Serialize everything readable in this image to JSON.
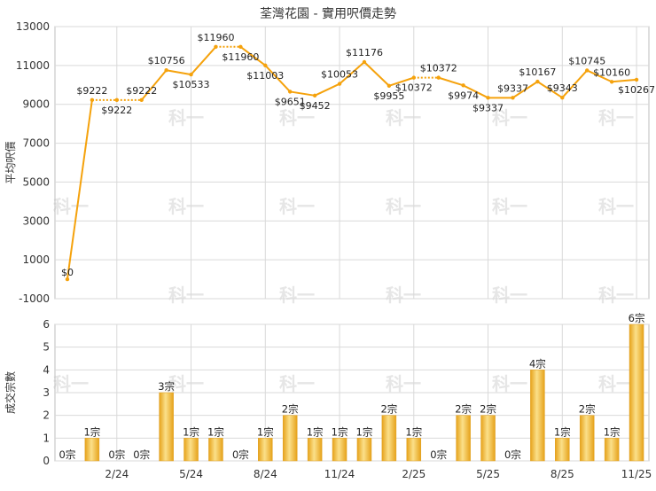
{
  "title": "荃灣花園 - 實用呎價走勢",
  "watermark": "科一",
  "colors": {
    "line": "#f5a20c",
    "bar_light": "#fbe08a",
    "bar_dark": "#e6a21a",
    "grid": "#d9d9d9",
    "axis_text": "#333333",
    "watermark": "#e6e6e6"
  },
  "chart_data": [
    {
      "type": "line",
      "title": "荃灣花園 - 實用呎價走勢",
      "ylabel": "平均呎價",
      "ylim": [
        -1000,
        13000
      ],
      "yticks": [
        -1000,
        1000,
        3000,
        5000,
        7000,
        9000,
        11000,
        13000
      ],
      "grid": true,
      "points": [
        {
          "y": 0,
          "label": "$0",
          "pos": "left",
          "seg": "solid"
        },
        {
          "y": 9222,
          "label": "$9222",
          "pos": "above",
          "seg": "solid"
        },
        {
          "y": 9222,
          "label": "$9222",
          "pos": "below",
          "seg": "dotted"
        },
        {
          "y": 9222,
          "label": "$9222",
          "pos": "above",
          "seg": "dotted"
        },
        {
          "y": 10756,
          "label": "$10756",
          "pos": "above",
          "seg": "solid"
        },
        {
          "y": 10533,
          "label": "$10533",
          "pos": "below",
          "seg": "solid"
        },
        {
          "y": 11960,
          "label": "$11960",
          "pos": "above",
          "seg": "solid"
        },
        {
          "y": 11960,
          "label": "$11960",
          "pos": "below",
          "seg": "dotted"
        },
        {
          "y": 11003,
          "label": "$11003",
          "pos": "below",
          "seg": "solid"
        },
        {
          "y": 9651,
          "label": "$9651",
          "pos": "below",
          "seg": "solid"
        },
        {
          "y": 9452,
          "label": "$9452",
          "pos": "below",
          "seg": "solid"
        },
        {
          "y": 10053,
          "label": "$10053",
          "pos": "above",
          "seg": "solid"
        },
        {
          "y": 11176,
          "label": "$11176",
          "pos": "above",
          "seg": "solid"
        },
        {
          "y": 9955,
          "label": "$9955",
          "pos": "below",
          "seg": "solid"
        },
        {
          "y": 10372,
          "label": "$10372",
          "pos": "below",
          "seg": "solid"
        },
        {
          "y": 10372,
          "label": "$10372",
          "pos": "above",
          "seg": "dotted"
        },
        {
          "y": 9974,
          "label": "$9974",
          "pos": "below",
          "seg": "solid"
        },
        {
          "y": 9337,
          "label": "$9337",
          "pos": "below",
          "seg": "solid"
        },
        {
          "y": 9337,
          "label": "$9337",
          "pos": "above",
          "seg": "solid"
        },
        {
          "y": 10167,
          "label": "$10167",
          "pos": "above",
          "seg": "solid"
        },
        {
          "y": 9343,
          "label": "$9343",
          "pos": "above",
          "seg": "solid"
        },
        {
          "y": 10745,
          "label": "$10745",
          "pos": "above",
          "seg": "solid"
        },
        {
          "y": 10160,
          "label": "$10160",
          "pos": "above",
          "seg": "solid"
        },
        {
          "y": 10267,
          "label": "$10267",
          "pos": "below",
          "seg": "solid"
        }
      ]
    },
    {
      "type": "bar",
      "ylabel": "成交宗數",
      "ylim": [
        0,
        6
      ],
      "yticks": [
        0,
        1,
        2,
        3,
        4,
        5,
        6
      ],
      "grid": true,
      "values": [
        0,
        1,
        0,
        0,
        3,
        1,
        1,
        0,
        1,
        2,
        1,
        1,
        1,
        2,
        1,
        0,
        2,
        2,
        0,
        4,
        1,
        2,
        1,
        6
      ],
      "value_labels": [
        "0宗",
        "1宗",
        "0宗",
        "0宗",
        "3宗",
        "1宗",
        "1宗",
        "0宗",
        "1宗",
        "2宗",
        "1宗",
        "1宗",
        "1宗",
        "2宗",
        "1宗",
        "0宗",
        "2宗",
        "2宗",
        "0宗",
        "4宗",
        "1宗",
        "2宗",
        "1宗",
        "6宗"
      ],
      "x_ticks": [
        {
          "index": 2,
          "label": "2/24"
        },
        {
          "index": 5,
          "label": "5/24"
        },
        {
          "index": 8,
          "label": "8/24"
        },
        {
          "index": 11,
          "label": "11/24"
        },
        {
          "index": 14,
          "label": "2/25"
        },
        {
          "index": 17,
          "label": "5/25"
        },
        {
          "index": 20,
          "label": "8/25"
        },
        {
          "index": 23,
          "label": "11/25"
        }
      ]
    }
  ]
}
